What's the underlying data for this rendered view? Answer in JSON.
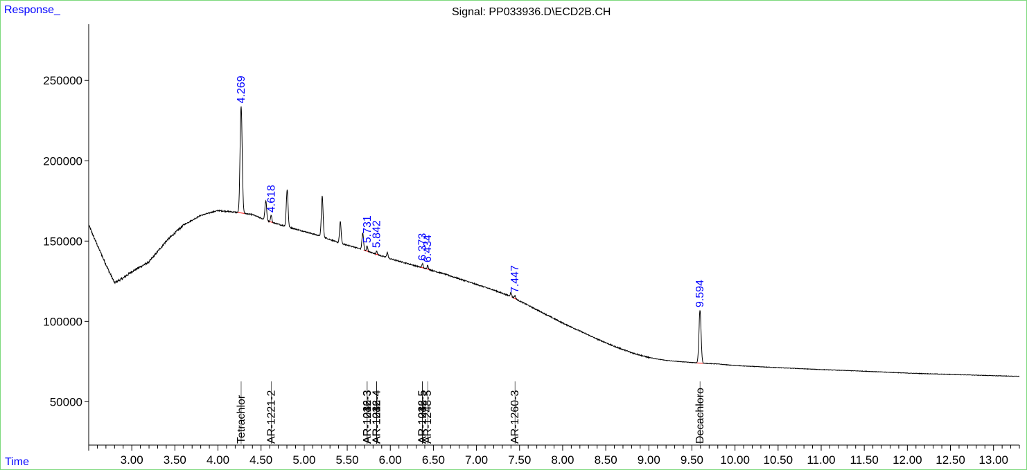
{
  "chart_data": {
    "type": "line",
    "title": "Signal: PP033936.D\\ECD2B.CH",
    "ylabel": "Response_",
    "xlabel": "Time",
    "xlim": [
      2.5,
      13.3
    ],
    "ylim": [
      23000,
      285000
    ],
    "yticks": [
      50000,
      100000,
      150000,
      200000,
      250000
    ],
    "ytick_labels": [
      "50000",
      "100000",
      "150000",
      "200000",
      "250000"
    ],
    "xticks": [
      3.0,
      3.5,
      4.0,
      4.5,
      5.0,
      5.5,
      6.0,
      6.5,
      7.0,
      7.5,
      8.0,
      8.5,
      9.0,
      9.5,
      10.0,
      10.5,
      11.0,
      11.5,
      12.0,
      12.5,
      13.0
    ],
    "xtick_labels": [
      "3.00",
      "3.50",
      "4.00",
      "4.50",
      "5.00",
      "5.50",
      "6.00",
      "6.50",
      "7.00",
      "7.50",
      "8.00",
      "8.50",
      "9.00",
      "9.50",
      "10.00",
      "10.50",
      "11.00",
      "11.50",
      "12.00",
      "12.50",
      "13.00"
    ],
    "minor_tick_step": 0.1,
    "grid": false,
    "line_color": "#000000",
    "label_color": "#0000ff",
    "baseline_color": "#ff0000",
    "baseline": [
      [
        2.5,
        160000
      ],
      [
        2.62,
        145000
      ],
      [
        2.72,
        133000
      ],
      [
        2.8,
        124000
      ],
      [
        2.9,
        127000
      ],
      [
        3.0,
        131000
      ],
      [
        3.2,
        137000
      ],
      [
        3.4,
        150000
      ],
      [
        3.6,
        160000
      ],
      [
        3.8,
        166000
      ],
      [
        4.0,
        169000
      ],
      [
        4.2,
        168000
      ],
      [
        4.4,
        166500
      ],
      [
        4.6,
        162000
      ],
      [
        4.8,
        159000
      ],
      [
        5.0,
        156000
      ],
      [
        5.2,
        153000
      ],
      [
        5.4,
        149000
      ],
      [
        5.6,
        146000
      ],
      [
        5.8,
        142500
      ],
      [
        6.0,
        139000
      ],
      [
        6.2,
        136000
      ],
      [
        6.4,
        133000
      ],
      [
        6.6,
        130000
      ],
      [
        6.8,
        126500
      ],
      [
        7.0,
        123000
      ],
      [
        7.2,
        119500
      ],
      [
        7.4,
        115500
      ],
      [
        7.6,
        110000
      ],
      [
        7.8,
        104500
      ],
      [
        8.0,
        99000
      ],
      [
        8.2,
        94000
      ],
      [
        8.4,
        89000
      ],
      [
        8.6,
        84500
      ],
      [
        8.8,
        80500
      ],
      [
        9.0,
        77500
      ],
      [
        9.2,
        75700
      ],
      [
        9.4,
        74800
      ],
      [
        9.6,
        74000
      ],
      [
        9.8,
        73500
      ],
      [
        10.0,
        72500
      ],
      [
        10.5,
        71200
      ],
      [
        11.0,
        70000
      ],
      [
        11.5,
        69000
      ],
      [
        12.0,
        67800
      ],
      [
        12.5,
        67000
      ],
      [
        13.0,
        66200
      ],
      [
        13.3,
        65800
      ]
    ],
    "peaks": [
      {
        "rt": 4.269,
        "height": 234000,
        "width": 0.012
      },
      {
        "rt": 4.555,
        "height": 175000,
        "width": 0.01
      },
      {
        "rt": 4.618,
        "height": 166000,
        "width": 0.008
      },
      {
        "rt": 4.803,
        "height": 182000,
        "width": 0.01
      },
      {
        "rt": 5.21,
        "height": 178000,
        "width": 0.01
      },
      {
        "rt": 5.42,
        "height": 162000,
        "width": 0.009
      },
      {
        "rt": 5.68,
        "height": 155000,
        "width": 0.009
      },
      {
        "rt": 5.731,
        "height": 147000,
        "width": 0.007
      },
      {
        "rt": 5.842,
        "height": 144000,
        "width": 0.007
      },
      {
        "rt": 5.965,
        "height": 143000,
        "width": 0.008
      },
      {
        "rt": 6.373,
        "height": 136000,
        "width": 0.007
      },
      {
        "rt": 6.434,
        "height": 135000,
        "width": 0.007
      },
      {
        "rt": 7.4,
        "height": 118000,
        "width": 0.008
      },
      {
        "rt": 7.447,
        "height": 116000,
        "width": 0.008
      },
      {
        "rt": 9.594,
        "height": 107000,
        "width": 0.012
      }
    ],
    "peak_labels": [
      "4.269",
      "4.618",
      "5.731",
      "5.842",
      "6.373",
      "6.434",
      "7.447",
      "9.594"
    ],
    "peak_label_values": [
      4.269,
      4.618,
      5.731,
      5.842,
      6.373,
      6.434,
      7.447,
      9.594
    ],
    "compound_labels": [
      {
        "x": 4.269,
        "text": "Tetrachlor"
      },
      {
        "x": 4.618,
        "text": "AR-1221-2"
      },
      {
        "x": 5.731,
        "text": "AR-1016-3"
      },
      {
        "x": 5.731,
        "text": "AR-1232-3"
      },
      {
        "x": 5.731,
        "text": "AR-1242-3"
      },
      {
        "x": 5.842,
        "text": "AR-1016-4"
      },
      {
        "x": 5.842,
        "text": "AR-1232-4"
      },
      {
        "x": 5.842,
        "text": "AR-1242-4"
      },
      {
        "x": 6.373,
        "text": "AR-1242-5"
      },
      {
        "x": 6.373,
        "text": "AR-1232-5"
      },
      {
        "x": 6.373,
        "text": "AR-1016-5"
      },
      {
        "x": 6.434,
        "text": "AR-1248-5"
      },
      {
        "x": 7.447,
        "text": "AR-1260-3"
      },
      {
        "x": 9.594,
        "text": "Decachloro"
      }
    ]
  }
}
